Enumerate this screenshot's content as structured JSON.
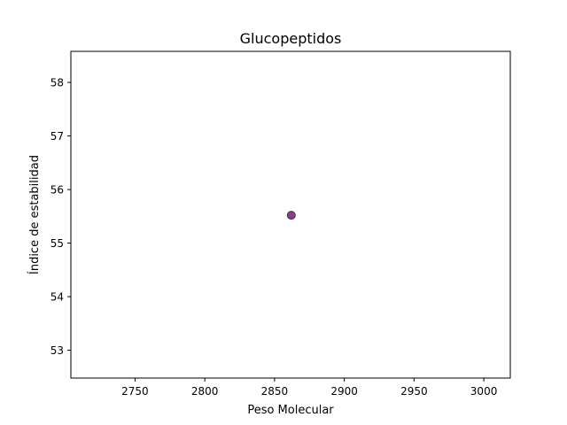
{
  "chart_data": {
    "type": "scatter",
    "title": "Glucopeptidos",
    "xlabel": "Peso Molecular",
    "ylabel": "Índice de estabilidad",
    "xlim": [
      2704,
      3019
    ],
    "ylim": [
      52.48,
      58.58
    ],
    "xticks": [
      2750,
      2800,
      2850,
      2900,
      2950,
      3000
    ],
    "yticks": [
      53,
      54,
      55,
      56,
      57,
      58
    ],
    "grid": false,
    "series": [
      {
        "points": [
          {
            "x": 2862,
            "y": 55.52
          }
        ],
        "color": "#8e3a8e",
        "edge_color": "#333333"
      }
    ]
  }
}
